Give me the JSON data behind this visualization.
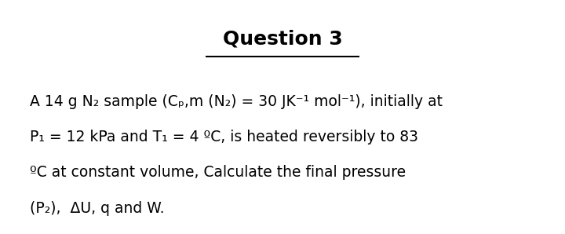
{
  "title": "Question 3",
  "background_color": "#ffffff",
  "text_color": "#000000",
  "title_fontsize": 18,
  "body_fontsize": 13.5,
  "line1": "A 14 g N₂ sample (Cₚ,m (N₂) = 30 JK⁻¹ mol⁻¹), initially at",
  "line2": "P₁ = 12 kPa and T₁ = 4 ºC, is heated reversibly to 83",
  "line3": "ºC at constant volume, Calculate the final pressure",
  "line4": "(P₂),  ΔU, q and W."
}
